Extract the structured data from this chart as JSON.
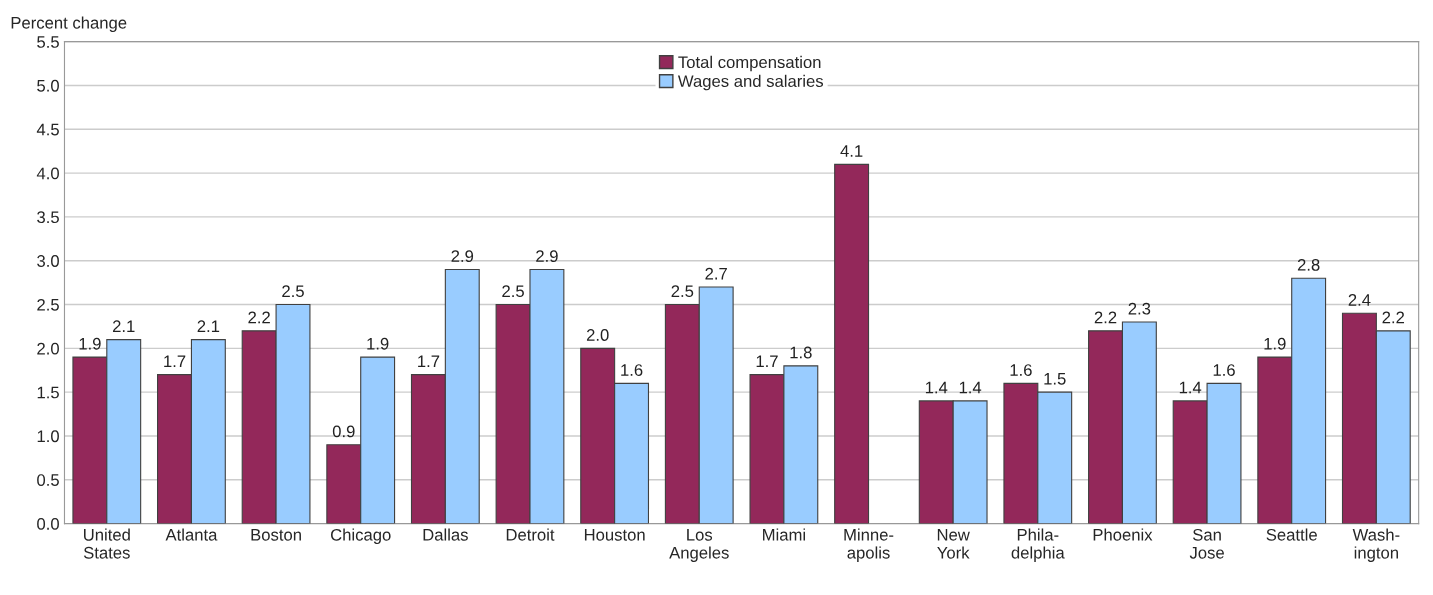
{
  "chart_data": {
    "type": "bar",
    "ylabel": "Percent change",
    "categories": [
      "United\nStates",
      "Atlanta",
      "Boston",
      "Chicago",
      "Dallas",
      "Detroit",
      "Houston",
      "Los\nAngeles",
      "Miami",
      "Minne-\napolis",
      "New\nYork",
      "Phila-\ndelphia",
      "Phoenix",
      "San\nJose",
      "Seattle",
      "Wash-\nington"
    ],
    "series": [
      {
        "name": "Total compensation",
        "color": "#93285a",
        "values": [
          1.9,
          1.7,
          2.2,
          0.9,
          1.7,
          2.5,
          2.0,
          2.5,
          1.7,
          4.1,
          1.4,
          1.6,
          2.2,
          1.4,
          1.9,
          2.4
        ],
        "value_labels": [
          "1.9",
          "1.7",
          "2.2",
          "0.9",
          "1.7",
          "2.5",
          "2.0",
          "2.5",
          "1.7",
          "4.1",
          "1.4",
          "1.6",
          "2.2",
          "1.4",
          "1.9",
          "2.4"
        ]
      },
      {
        "name": "Wages and salaries",
        "color": "#99ccff",
        "values": [
          2.1,
          2.1,
          2.5,
          1.9,
          2.9,
          2.9,
          1.6,
          2.7,
          1.8,
          null,
          1.4,
          1.5,
          2.3,
          1.6,
          2.8,
          2.2
        ],
        "value_labels": [
          "2.1",
          "2.1",
          "2.5",
          "1.9",
          "2.9",
          "2.9",
          "1.6",
          "2.7",
          "1.8",
          null,
          "1.4",
          "1.5",
          "2.3",
          "1.6",
          "2.8",
          "2.2"
        ]
      }
    ],
    "ylim": [
      0,
      5.5
    ],
    "yticks": [
      {
        "value": 0,
        "label": "0.0"
      },
      {
        "value": 0.5,
        "label": "0.5"
      },
      {
        "value": 1,
        "label": "1.0"
      },
      {
        "value": 1.5,
        "label": "1.5"
      },
      {
        "value": 2,
        "label": "2.0"
      },
      {
        "value": 2.5,
        "label": "2.5"
      },
      {
        "value": 3,
        "label": "3.0"
      },
      {
        "value": 3.5,
        "label": "3.5"
      },
      {
        "value": 4,
        "label": "4.0"
      },
      {
        "value": 4.5,
        "label": "4.5"
      },
      {
        "value": 5,
        "label": "5.0"
      },
      {
        "value": 5.5,
        "label": "5.5"
      }
    ],
    "grid": "y",
    "legend": "top"
  }
}
